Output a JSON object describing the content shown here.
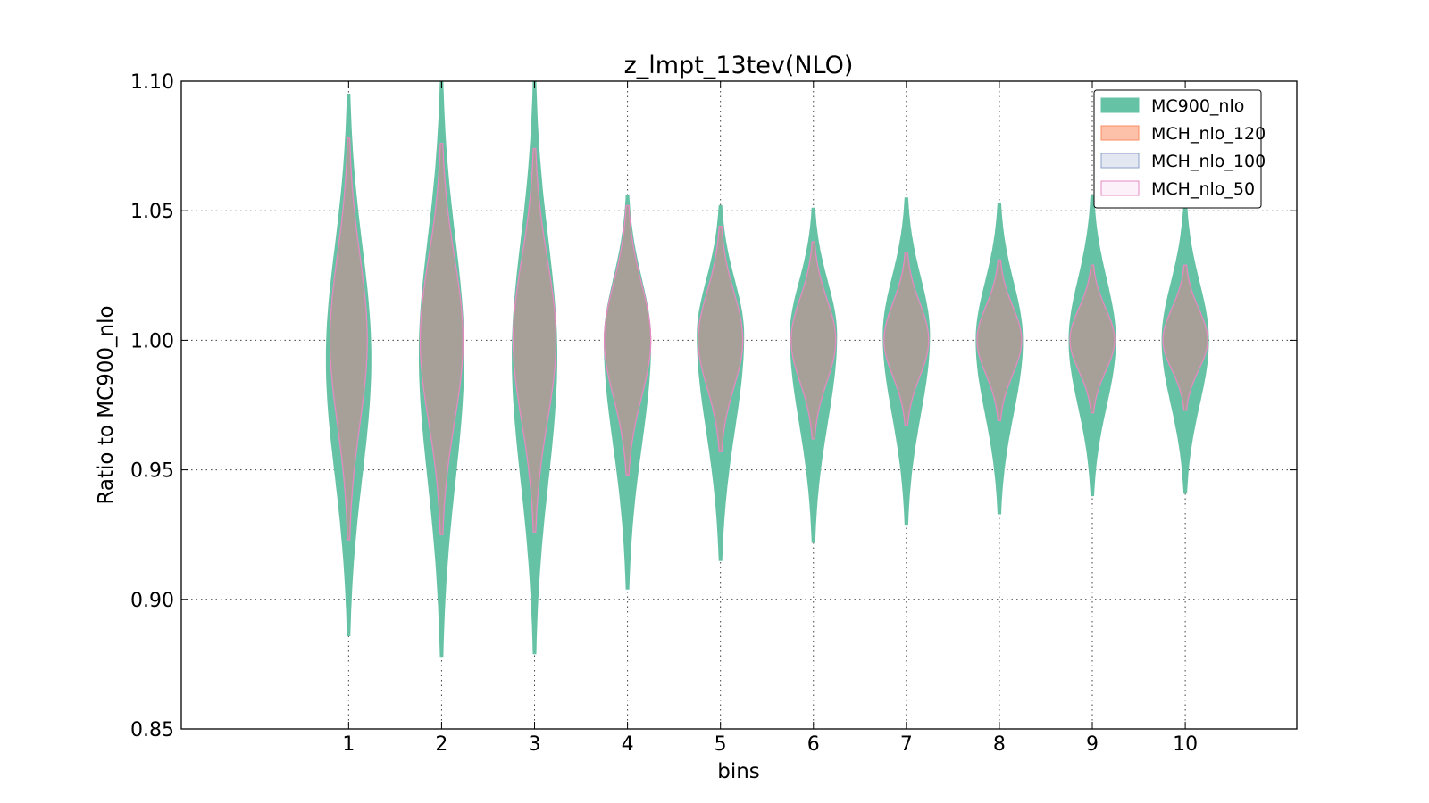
{
  "chart_data": {
    "type": "violin",
    "title": "z_lmpt_13tev(NLO)",
    "xlabel": "bins",
    "ylabel": "Ratio to MC900_nlo",
    "ylim": [
      0.85,
      1.1
    ],
    "xlim": [
      -0.8,
      11.2
    ],
    "x_ticks": [
      1,
      2,
      3,
      4,
      5,
      6,
      7,
      8,
      9,
      10
    ],
    "x_tick_labels": [
      "1",
      "2",
      "3",
      "4",
      "5",
      "6",
      "7",
      "8",
      "9",
      "10"
    ],
    "y_ticks": [
      0.85,
      0.9,
      0.95,
      1.0,
      1.05,
      1.1
    ],
    "y_tick_labels": [
      "0.85",
      "0.90",
      "0.95",
      "1.00",
      "1.05",
      "1.10"
    ],
    "grid": true,
    "legend_position": "top-right",
    "bins": [
      {
        "bin": 1,
        "mc900": {
          "min": 0.886,
          "max": 1.095,
          "center": 0.993,
          "halfwidth": 0.24
        },
        "mch": {
          "min": 0.923,
          "max": 1.078,
          "center": 1.0,
          "halfwidth": 0.2
        }
      },
      {
        "bin": 2,
        "mc900": {
          "min": 0.878,
          "max": 1.1,
          "center": 0.995,
          "halfwidth": 0.24
        },
        "mch": {
          "min": 0.925,
          "max": 1.076,
          "center": 1.0,
          "halfwidth": 0.23
        }
      },
      {
        "bin": 3,
        "mc900": {
          "min": 0.879,
          "max": 1.1,
          "center": 0.994,
          "halfwidth": 0.24
        },
        "mch": {
          "min": 0.926,
          "max": 1.074,
          "center": 1.0,
          "halfwidth": 0.23
        }
      },
      {
        "bin": 4,
        "mc900": {
          "min": 0.904,
          "max": 1.056,
          "center": 1.0,
          "halfwidth": 0.25
        },
        "mch": {
          "min": 0.948,
          "max": 1.052,
          "center": 1.0,
          "halfwidth": 0.25
        }
      },
      {
        "bin": 5,
        "mc900": {
          "min": 0.915,
          "max": 1.052,
          "center": 1.002,
          "halfwidth": 0.25
        },
        "mch": {
          "min": 0.957,
          "max": 1.044,
          "center": 1.0,
          "halfwidth": 0.24
        }
      },
      {
        "bin": 6,
        "mc900": {
          "min": 0.922,
          "max": 1.051,
          "center": 1.002,
          "halfwidth": 0.25
        },
        "mch": {
          "min": 0.962,
          "max": 1.038,
          "center": 1.0,
          "halfwidth": 0.24
        }
      },
      {
        "bin": 7,
        "mc900": {
          "min": 0.929,
          "max": 1.055,
          "center": 1.002,
          "halfwidth": 0.25
        },
        "mch": {
          "min": 0.967,
          "max": 1.034,
          "center": 1.0,
          "halfwidth": 0.24
        }
      },
      {
        "bin": 8,
        "mc900": {
          "min": 0.933,
          "max": 1.053,
          "center": 1.0,
          "halfwidth": 0.25
        },
        "mch": {
          "min": 0.969,
          "max": 1.031,
          "center": 1.0,
          "halfwidth": 0.24
        }
      },
      {
        "bin": 9,
        "mc900": {
          "min": 0.94,
          "max": 1.056,
          "center": 1.0,
          "halfwidth": 0.25
        },
        "mch": {
          "min": 0.972,
          "max": 1.029,
          "center": 1.0,
          "halfwidth": 0.24
        }
      },
      {
        "bin": 10,
        "mc900": {
          "min": 0.941,
          "max": 1.053,
          "center": 1.0,
          "halfwidth": 0.25
        },
        "mch": {
          "min": 0.973,
          "max": 1.029,
          "center": 1.0,
          "halfwidth": 0.24
        }
      }
    ],
    "series": [
      {
        "name": "MC900_nlo",
        "fill": "#66c2a5",
        "edge": "#66c2a5"
      },
      {
        "name": "MCH_nlo_120",
        "fill": "#fc8d62",
        "edge": "#fc8d62"
      },
      {
        "name": "MCH_nlo_100",
        "fill": "#8da0cb",
        "edge": "#8da0cb"
      },
      {
        "name": "MCH_nlo_50",
        "fill": "#e78ac3",
        "edge": "#e78ac3"
      }
    ],
    "overlap_fill": "#a89e98"
  }
}
